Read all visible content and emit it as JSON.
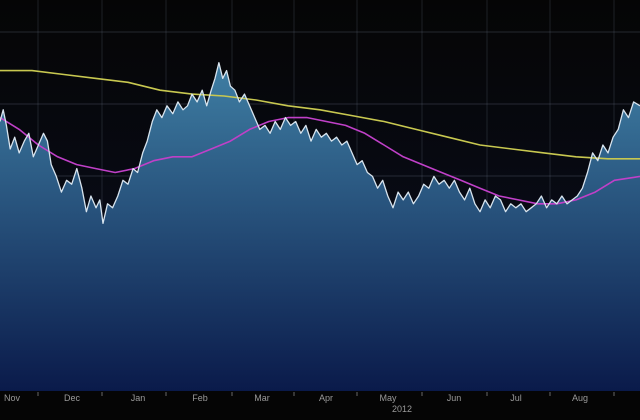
{
  "chart_data": {
    "type": "area",
    "title": "",
    "xlabel": "",
    "ylabel": "",
    "grid": true,
    "x_ticks": [
      "Nov",
      "Dec",
      "Jan",
      "Feb",
      "Mar",
      "Apr",
      "May",
      "Jun",
      "Jul",
      "Aug"
    ],
    "year_label": "2012",
    "y_range": [
      0,
      100
    ],
    "series": [
      {
        "style": "area-line",
        "color": "#d8e4ee",
        "fill_top": "#3f7fa4",
        "fill_bottom": "#0a1a4a",
        "points": [
          [
            0,
            69
          ],
          [
            0.5,
            72
          ],
          [
            1,
            68
          ],
          [
            1.6,
            62
          ],
          [
            2.3,
            65
          ],
          [
            3,
            61
          ],
          [
            3.8,
            64
          ],
          [
            4.5,
            66
          ],
          [
            5.2,
            60
          ],
          [
            6,
            63
          ],
          [
            6.8,
            66
          ],
          [
            7.4,
            64
          ],
          [
            8,
            58
          ],
          [
            8.8,
            55
          ],
          [
            9.6,
            51
          ],
          [
            10.4,
            54
          ],
          [
            11.2,
            53
          ],
          [
            12,
            57
          ],
          [
            12.8,
            52
          ],
          [
            13.5,
            46
          ],
          [
            14.2,
            50
          ],
          [
            15,
            47
          ],
          [
            15.6,
            49
          ],
          [
            16.1,
            43
          ],
          [
            16.8,
            48
          ],
          [
            17.6,
            47
          ],
          [
            18.4,
            50
          ],
          [
            19.2,
            54
          ],
          [
            20,
            53
          ],
          [
            20.8,
            57
          ],
          [
            21.5,
            56
          ],
          [
            22.3,
            61
          ],
          [
            23,
            64
          ],
          [
            23.8,
            69
          ],
          [
            24.5,
            72
          ],
          [
            25.3,
            70
          ],
          [
            26.1,
            73
          ],
          [
            27,
            71
          ],
          [
            27.8,
            74
          ],
          [
            28.6,
            72
          ],
          [
            29.3,
            73
          ],
          [
            30,
            76
          ],
          [
            30.8,
            74
          ],
          [
            31.6,
            77
          ],
          [
            32.3,
            73
          ],
          [
            33,
            77
          ],
          [
            33.6,
            80
          ],
          [
            34.2,
            84
          ],
          [
            34.8,
            80
          ],
          [
            35.4,
            82
          ],
          [
            36,
            78
          ],
          [
            36.7,
            77
          ],
          [
            37.4,
            74
          ],
          [
            38.2,
            76
          ],
          [
            39,
            73
          ],
          [
            39.8,
            70
          ],
          [
            40.6,
            67
          ],
          [
            41.4,
            68
          ],
          [
            42.2,
            66
          ],
          [
            43,
            69
          ],
          [
            43.8,
            67
          ],
          [
            44.6,
            70
          ],
          [
            45.4,
            68
          ],
          [
            46.2,
            69
          ],
          [
            47,
            66
          ],
          [
            47.8,
            68
          ],
          [
            48.6,
            64
          ],
          [
            49.4,
            67
          ],
          [
            50.2,
            65
          ],
          [
            51,
            66
          ],
          [
            51.8,
            64
          ],
          [
            52.6,
            65
          ],
          [
            53.4,
            63
          ],
          [
            54.2,
            64
          ],
          [
            55,
            61
          ],
          [
            55.8,
            58
          ],
          [
            56.6,
            59
          ],
          [
            57.4,
            56
          ],
          [
            58.2,
            55
          ],
          [
            59,
            52
          ],
          [
            59.8,
            54
          ],
          [
            60.6,
            50
          ],
          [
            61.4,
            47
          ],
          [
            62.2,
            51
          ],
          [
            63,
            49
          ],
          [
            63.8,
            51
          ],
          [
            64.6,
            48
          ],
          [
            65.4,
            50
          ],
          [
            66.2,
            53
          ],
          [
            67,
            52
          ],
          [
            67.8,
            55
          ],
          [
            68.6,
            53
          ],
          [
            69.4,
            54
          ],
          [
            70.2,
            52
          ],
          [
            71,
            54
          ],
          [
            71.8,
            51
          ],
          [
            72.6,
            49
          ],
          [
            73.4,
            52
          ],
          [
            74.2,
            48
          ],
          [
            75,
            46
          ],
          [
            75.8,
            49
          ],
          [
            76.6,
            47
          ],
          [
            77.4,
            50
          ],
          [
            78.2,
            49
          ],
          [
            79,
            46
          ],
          [
            79.8,
            48
          ],
          [
            80.6,
            47
          ],
          [
            81.4,
            48
          ],
          [
            82.2,
            46
          ],
          [
            83,
            47
          ],
          [
            83.8,
            48
          ],
          [
            84.6,
            50
          ],
          [
            85.4,
            47
          ],
          [
            86.2,
            49
          ],
          [
            87,
            48
          ],
          [
            87.8,
            50
          ],
          [
            88.6,
            48
          ],
          [
            89.4,
            49
          ],
          [
            90.2,
            50
          ],
          [
            91,
            52
          ],
          [
            91.8,
            56
          ],
          [
            92.6,
            61
          ],
          [
            93.4,
            59
          ],
          [
            94.2,
            63
          ],
          [
            95,
            61
          ],
          [
            95.8,
            65
          ],
          [
            96.6,
            67
          ],
          [
            97.4,
            72
          ],
          [
            98.2,
            70
          ],
          [
            99,
            74
          ],
          [
            100,
            73
          ]
        ]
      },
      {
        "style": "line",
        "color": "#c040c8",
        "points": [
          [
            0,
            70
          ],
          [
            3,
            67
          ],
          [
            6,
            63
          ],
          [
            9,
            60
          ],
          [
            12,
            58
          ],
          [
            15,
            57
          ],
          [
            18,
            56
          ],
          [
            21,
            57
          ],
          [
            24,
            59
          ],
          [
            27,
            60
          ],
          [
            30,
            60
          ],
          [
            33,
            62
          ],
          [
            36,
            64
          ],
          [
            39,
            67
          ],
          [
            42,
            69
          ],
          [
            45,
            70
          ],
          [
            48,
            70
          ],
          [
            51,
            69
          ],
          [
            54,
            68
          ],
          [
            57,
            66
          ],
          [
            60,
            63
          ],
          [
            63,
            60
          ],
          [
            66,
            58
          ],
          [
            69,
            56
          ],
          [
            72,
            54
          ],
          [
            75,
            52
          ],
          [
            78,
            50
          ],
          [
            81,
            49
          ],
          [
            84,
            48
          ],
          [
            87,
            48
          ],
          [
            90,
            49
          ],
          [
            93,
            51
          ],
          [
            96,
            54
          ],
          [
            100,
            55
          ]
        ]
      },
      {
        "style": "line",
        "color": "#c8c850",
        "points": [
          [
            0,
            82
          ],
          [
            5,
            82
          ],
          [
            10,
            81
          ],
          [
            15,
            80
          ],
          [
            20,
            79
          ],
          [
            25,
            77
          ],
          [
            30,
            76
          ],
          [
            35,
            75.5
          ],
          [
            40,
            74.5
          ],
          [
            45,
            73
          ],
          [
            50,
            72
          ],
          [
            55,
            70.5
          ],
          [
            60,
            69
          ],
          [
            65,
            67
          ],
          [
            70,
            65
          ],
          [
            75,
            63
          ],
          [
            80,
            62
          ],
          [
            85,
            61
          ],
          [
            90,
            60
          ],
          [
            95,
            59.5
          ],
          [
            100,
            59.5
          ]
        ]
      }
    ]
  }
}
